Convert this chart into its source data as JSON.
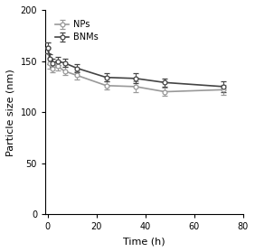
{
  "NPs": {
    "x": [
      0,
      1,
      2,
      4,
      7,
      12,
      24,
      36,
      48,
      72
    ],
    "y": [
      163,
      148,
      143,
      145,
      140,
      136,
      126,
      125,
      120,
      122
    ],
    "yerr": [
      5,
      5,
      4,
      4,
      4,
      4,
      4,
      5,
      4,
      5
    ],
    "color": "#999999",
    "label": "NPs"
  },
  "BNMs": {
    "x": [
      0,
      1,
      2,
      4,
      7,
      12,
      24,
      36,
      48,
      72
    ],
    "y": [
      163,
      152,
      148,
      150,
      148,
      143,
      134,
      133,
      129,
      125
    ],
    "yerr": [
      5,
      5,
      4,
      4,
      4,
      4,
      4,
      5,
      4,
      5
    ],
    "color": "#444444",
    "label": "BNMs"
  },
  "xlabel": "Time (h)",
  "ylabel": "Particle size (nm)",
  "xlim": [
    -1,
    80
  ],
  "ylim": [
    0,
    200
  ],
  "xticks": [
    0,
    20,
    40,
    60,
    80
  ],
  "yticks": [
    0,
    50,
    100,
    150,
    200
  ],
  "figsize": [
    2.82,
    2.79
  ],
  "dpi": 100,
  "marker": "o",
  "markersize": 3.5,
  "linewidth": 1.2
}
